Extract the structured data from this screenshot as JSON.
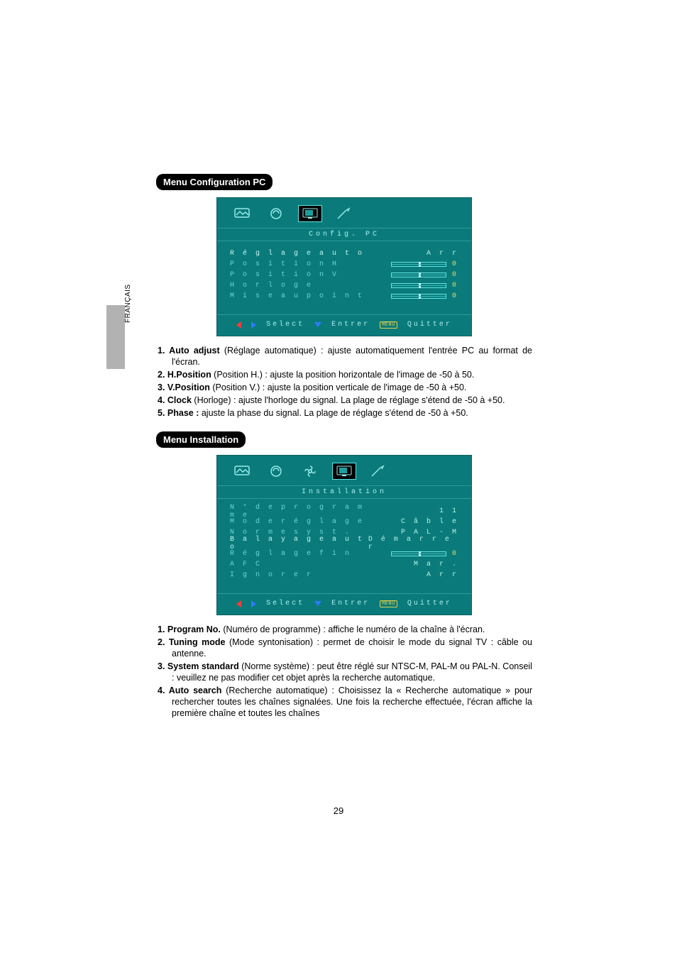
{
  "language_tab_label": "FRANÇAIS",
  "page_number": "29",
  "colors": {
    "osd_bg": "#0a7a7a",
    "osd_text": "#5fe7e7",
    "osd_border": "#2f9a9a",
    "tri_left": "#ff3b3b",
    "tri_right_down": "#2e7bff",
    "menu_tag": "#e7d24a",
    "yellow_value": "#d8e06a"
  },
  "section1": {
    "heading": "Menu Configuration PC",
    "osd": {
      "title": "Config. PC",
      "active_tab_index": 2,
      "rows": [
        {
          "label": "Réglage auto",
          "value_text": "Arr",
          "slider": false,
          "hot": true
        },
        {
          "label": "Position H",
          "value_text": "0",
          "slider": true,
          "thumb": 0.5
        },
        {
          "label": "Position V",
          "value_text": "0",
          "slider": true,
          "thumb": 0.5
        },
        {
          "label": "Horloge",
          "value_text": "0",
          "slider": true,
          "thumb": 0.5
        },
        {
          "label": "Mise au point",
          "value_text": "0",
          "slider": true,
          "thumb": 0.5
        }
      ],
      "footer": {
        "select": "Select",
        "enter": "Entrer",
        "menu_tag": "MENU",
        "quit": "Quitter"
      }
    },
    "items": [
      {
        "lead": "1. Auto adjust",
        "paren": " (Réglage automatique) ",
        "text": ": ajuste automatiquement l'entrée PC au format de l'écran."
      },
      {
        "lead": "2. H.Position",
        "paren": " (Position H.) ",
        "text": ": ajuste la position horizontale de l'image de -50 à 50."
      },
      {
        "lead": "3. V.Position",
        "paren": " (Position V.) ",
        "text": ": ajuste la position verticale de l'image de -50 à +50."
      },
      {
        "lead": "4. Clock",
        "paren": " (Horloge) ",
        "text": ": ajuste l'horloge du signal. La plage de réglage s'étend de -50 à +50."
      },
      {
        "lead": "5. Phase : ",
        "paren": "",
        "text": "ajuste la phase du signal. La plage de réglage s'étend de -50 à +50."
      }
    ]
  },
  "section2": {
    "heading": "Menu Installation",
    "osd": {
      "title": "Installation",
      "active_tab_index": 3,
      "rows": [
        {
          "label": "N° de programme",
          "value_text": "11",
          "slider": false
        },
        {
          "label": "Mode réglage",
          "value_text": "Câble",
          "slider": false
        },
        {
          "label": "Norme syst.",
          "value_text": "PAL-M",
          "slider": false
        },
        {
          "label": "Balayage auto",
          "value_text": "Démarrer",
          "slider": false,
          "hot": true
        },
        {
          "label": "Réglage fin",
          "value_text": "0",
          "slider": true,
          "thumb": 0.5
        },
        {
          "label": "AFC",
          "value_text": "Mar.",
          "slider": false
        },
        {
          "label": "Ignorer",
          "value_text": "Arr",
          "slider": false
        }
      ],
      "footer": {
        "select": "Select",
        "enter": "Entrer",
        "menu_tag": "MENU",
        "quit": "Quitter"
      }
    },
    "items": [
      {
        "lead": "1. Program No.",
        "paren": " (Numéro de programme) ",
        "text": ": affiche le numéro de la chaîne à l'écran."
      },
      {
        "lead": "2. Tuning mode",
        "paren": " (Mode syntonisation) ",
        "text": ": permet de choisir le mode du signal TV : câble ou antenne."
      },
      {
        "lead": "3. System standard",
        "paren": " (Norme système) ",
        "text": ": peut être réglé sur NTSC-M, PAL-M ou PAL-N. Conseil : veuillez ne pas modifier cet objet après la recherche automatique."
      },
      {
        "lead": "4. Auto search",
        "paren": " (Recherche automatique) ",
        "text": ": Choisissez la « Recherche automatique » pour rechercher toutes les chaînes signalées. Une fois la recherche effectuée, l'écran affiche la première chaîne et toutes les chaînes"
      }
    ]
  }
}
